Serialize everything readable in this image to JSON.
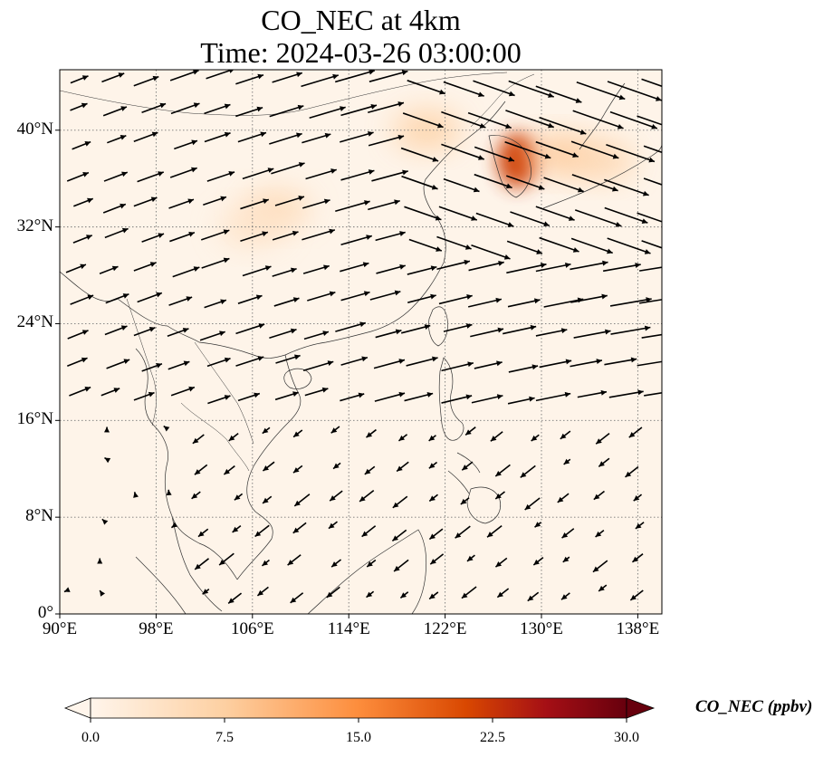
{
  "title": {
    "line1": "CO_NEC at 4km",
    "line2": "Time: 2024-03-26 03:00:00"
  },
  "map": {
    "lon_range": [
      90,
      140
    ],
    "lat_range": [
      0,
      45
    ],
    "lon_ticks": [
      {
        "value": 90,
        "label": "90°E"
      },
      {
        "value": 98,
        "label": "98°E"
      },
      {
        "value": 106,
        "label": "106°E"
      },
      {
        "value": 114,
        "label": "114°E"
      },
      {
        "value": 122,
        "label": "122°E"
      },
      {
        "value": 130,
        "label": "130°E"
      },
      {
        "value": 138,
        "label": "138°E"
      }
    ],
    "lat_ticks": [
      {
        "value": 0,
        "label": "0°"
      },
      {
        "value": 8,
        "label": "8°N"
      },
      {
        "value": 16,
        "label": "16°N"
      },
      {
        "value": 24,
        "label": "24°N"
      },
      {
        "value": 32,
        "label": "32°N"
      },
      {
        "value": 40,
        "label": "40°N"
      }
    ],
    "gridlines": "dotted",
    "plumes": [
      {
        "lon": 128.0,
        "lat": 37.5,
        "value": 22
      },
      {
        "lon": 131.5,
        "lat": 38.0,
        "value": 9
      },
      {
        "lon": 135.0,
        "lat": 37.5,
        "value": 7
      },
      {
        "lon": 120.5,
        "lat": 40.0,
        "value": 8
      },
      {
        "lon": 108.0,
        "lat": 33.5,
        "value": 6
      },
      {
        "lon": 106.0,
        "lat": 32.0,
        "value": 4
      }
    ]
  },
  "colorbar": {
    "label": "CO_NEC (ppbv)",
    "min": 0.0,
    "max": 30.0,
    "ticks": [
      {
        "value": 0.0,
        "label": "0.0"
      },
      {
        "value": 7.5,
        "label": "7.5"
      },
      {
        "value": 15.0,
        "label": "15.0"
      },
      {
        "value": 22.5,
        "label": "22.5"
      },
      {
        "value": 30.0,
        "label": "30.0"
      }
    ],
    "colors": [
      "#fff5eb",
      "#fdd0a2",
      "#fd8d3c",
      "#d94801",
      "#a50f15",
      "#67000d"
    ]
  }
}
